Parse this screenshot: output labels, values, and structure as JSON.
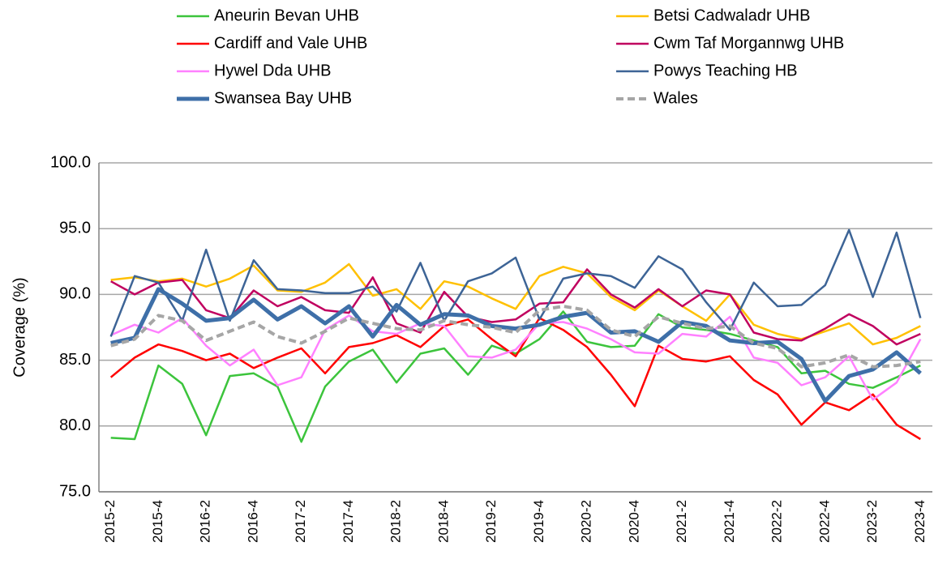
{
  "chart_data": {
    "type": "line",
    "y_label": "Coverage (%)",
    "categories": [
      "2015-2",
      null,
      "2015-4",
      null,
      "2016-2",
      null,
      "2016-4",
      null,
      "2017-2",
      null,
      "2017-4",
      null,
      "2018-2",
      null,
      "2018-4",
      null,
      "2019-2",
      null,
      "2019-4",
      null,
      "2020-2",
      null,
      "2020-4",
      null,
      "2021-2",
      null,
      "2021-4",
      null,
      "2022-2",
      null,
      "2022-4",
      null,
      "2023-2",
      null,
      "2023-4"
    ],
    "ylim": [
      75,
      100
    ],
    "yticks": [
      {
        "value": 75,
        "label": "75.0"
      },
      {
        "value": 80,
        "label": "80.0"
      },
      {
        "value": 85,
        "label": "85.0"
      },
      {
        "value": 90,
        "label": "90.0"
      },
      {
        "value": 95,
        "label": "95.0"
      },
      {
        "value": 100,
        "label": "100.0"
      }
    ],
    "grid": true,
    "series": [
      {
        "name": "Aneurin Bevan UHB",
        "color": "#3cc43c",
        "line_width": 2.5,
        "dashed": false,
        "values": [
          79.1,
          79.0,
          84.6,
          83.2,
          79.3,
          83.8,
          84.0,
          83.0,
          78.8,
          83.0,
          84.9,
          85.8,
          83.3,
          85.5,
          85.9,
          83.9,
          86.1,
          85.5,
          86.6,
          88.7,
          86.4,
          86.0,
          86.1,
          88.5,
          87.5,
          87.3,
          87.0,
          86.5,
          86.0,
          84.0,
          84.2,
          83.2,
          82.9,
          83.7,
          84.6
        ]
      },
      {
        "name": "Betsi Cadwaladr UHB",
        "color": "#ffc000",
        "line_width": 2.5,
        "dashed": false,
        "values": [
          91.1,
          91.3,
          91.0,
          91.2,
          90.6,
          91.2,
          92.2,
          90.3,
          90.2,
          90.9,
          92.3,
          89.9,
          90.4,
          88.9,
          91.0,
          90.6,
          89.7,
          88.9,
          91.4,
          92.1,
          91.6,
          89.8,
          88.8,
          90.3,
          89.1,
          88.0,
          90.0,
          87.7,
          87.0,
          86.6,
          87.2,
          87.8,
          86.2,
          86.7,
          87.6
        ]
      },
      {
        "name": "Cardiff and Vale UHB",
        "color": "#ff0000",
        "line_width": 2.5,
        "dashed": false,
        "values": [
          83.7,
          85.2,
          86.2,
          85.7,
          85.0,
          85.5,
          84.4,
          85.2,
          85.9,
          84.0,
          86.0,
          86.3,
          86.9,
          86.0,
          87.6,
          88.1,
          86.6,
          85.3,
          88.2,
          87.3,
          86.0,
          83.9,
          81.5,
          86.1,
          85.1,
          84.9,
          85.3,
          83.5,
          82.4,
          80.1,
          81.8,
          81.2,
          82.4,
          80.1,
          79.0
        ]
      },
      {
        "name": "Cwm Taf Morgannwg UHB",
        "color": "#c0005f",
        "line_width": 2.5,
        "dashed": false,
        "values": [
          91.0,
          90.0,
          90.9,
          91.1,
          88.8,
          88.2,
          90.3,
          89.1,
          89.8,
          88.8,
          88.6,
          91.3,
          87.8,
          87.1,
          90.2,
          88.3,
          87.9,
          88.1,
          89.3,
          89.4,
          91.9,
          90.0,
          89.0,
          90.4,
          89.1,
          90.3,
          90.0,
          87.1,
          86.6,
          86.5,
          87.4,
          88.5,
          87.6,
          86.2,
          87.0
        ]
      },
      {
        "name": "Hywel Dda UHB",
        "color": "#ff80ff",
        "line_width": 2.5,
        "dashed": false,
        "values": [
          86.9,
          87.7,
          87.1,
          88.2,
          86.1,
          84.6,
          85.8,
          83.1,
          83.7,
          87.3,
          88.4,
          87.2,
          87.0,
          87.8,
          87.6,
          85.3,
          85.2,
          85.8,
          87.8,
          87.9,
          87.4,
          86.6,
          85.6,
          85.5,
          87.0,
          86.8,
          88.3,
          85.2,
          84.8,
          83.1,
          83.7,
          85.3,
          82.0,
          83.3,
          86.6
        ]
      },
      {
        "name": "Powys Teaching HB",
        "color": "#3d6496",
        "line_width": 2.5,
        "dashed": false,
        "values": [
          86.8,
          91.4,
          90.9,
          88.0,
          93.4,
          88.0,
          92.6,
          90.4,
          90.3,
          90.1,
          90.1,
          90.6,
          88.7,
          92.4,
          88.0,
          91.0,
          91.6,
          92.8,
          88.1,
          91.2,
          91.6,
          91.4,
          90.5,
          92.9,
          91.9,
          89.4,
          87.3,
          90.9,
          89.1,
          89.2,
          90.7,
          94.9,
          89.8,
          94.7,
          88.2
        ]
      },
      {
        "name": "Swansea Bay UHB",
        "color": "#3e6fa8",
        "line_width": 5,
        "dashed": false,
        "values": [
          86.3,
          86.7,
          90.4,
          89.3,
          88.0,
          88.2,
          89.6,
          88.1,
          89.1,
          87.8,
          89.1,
          86.8,
          89.2,
          87.7,
          88.5,
          88.4,
          87.6,
          87.4,
          87.7,
          88.3,
          88.6,
          87.1,
          87.2,
          86.4,
          87.9,
          87.6,
          86.5,
          86.3,
          86.4,
          85.1,
          81.9,
          83.8,
          84.3,
          85.6,
          84.0
        ]
      },
      {
        "name": "Wales",
        "color": "#a6a6a6",
        "line_width": 4,
        "dashed": true,
        "values": [
          86.1,
          86.6,
          88.4,
          88.0,
          86.5,
          87.2,
          87.9,
          86.8,
          86.3,
          87.2,
          88.2,
          87.8,
          87.4,
          87.3,
          88.0,
          87.7,
          87.5,
          87.1,
          88.8,
          89.1,
          88.8,
          87.3,
          86.8,
          88.3,
          87.8,
          87.4,
          87.6,
          86.3,
          85.9,
          84.5,
          84.8,
          85.4,
          84.5,
          84.6,
          84.9
        ]
      }
    ]
  }
}
